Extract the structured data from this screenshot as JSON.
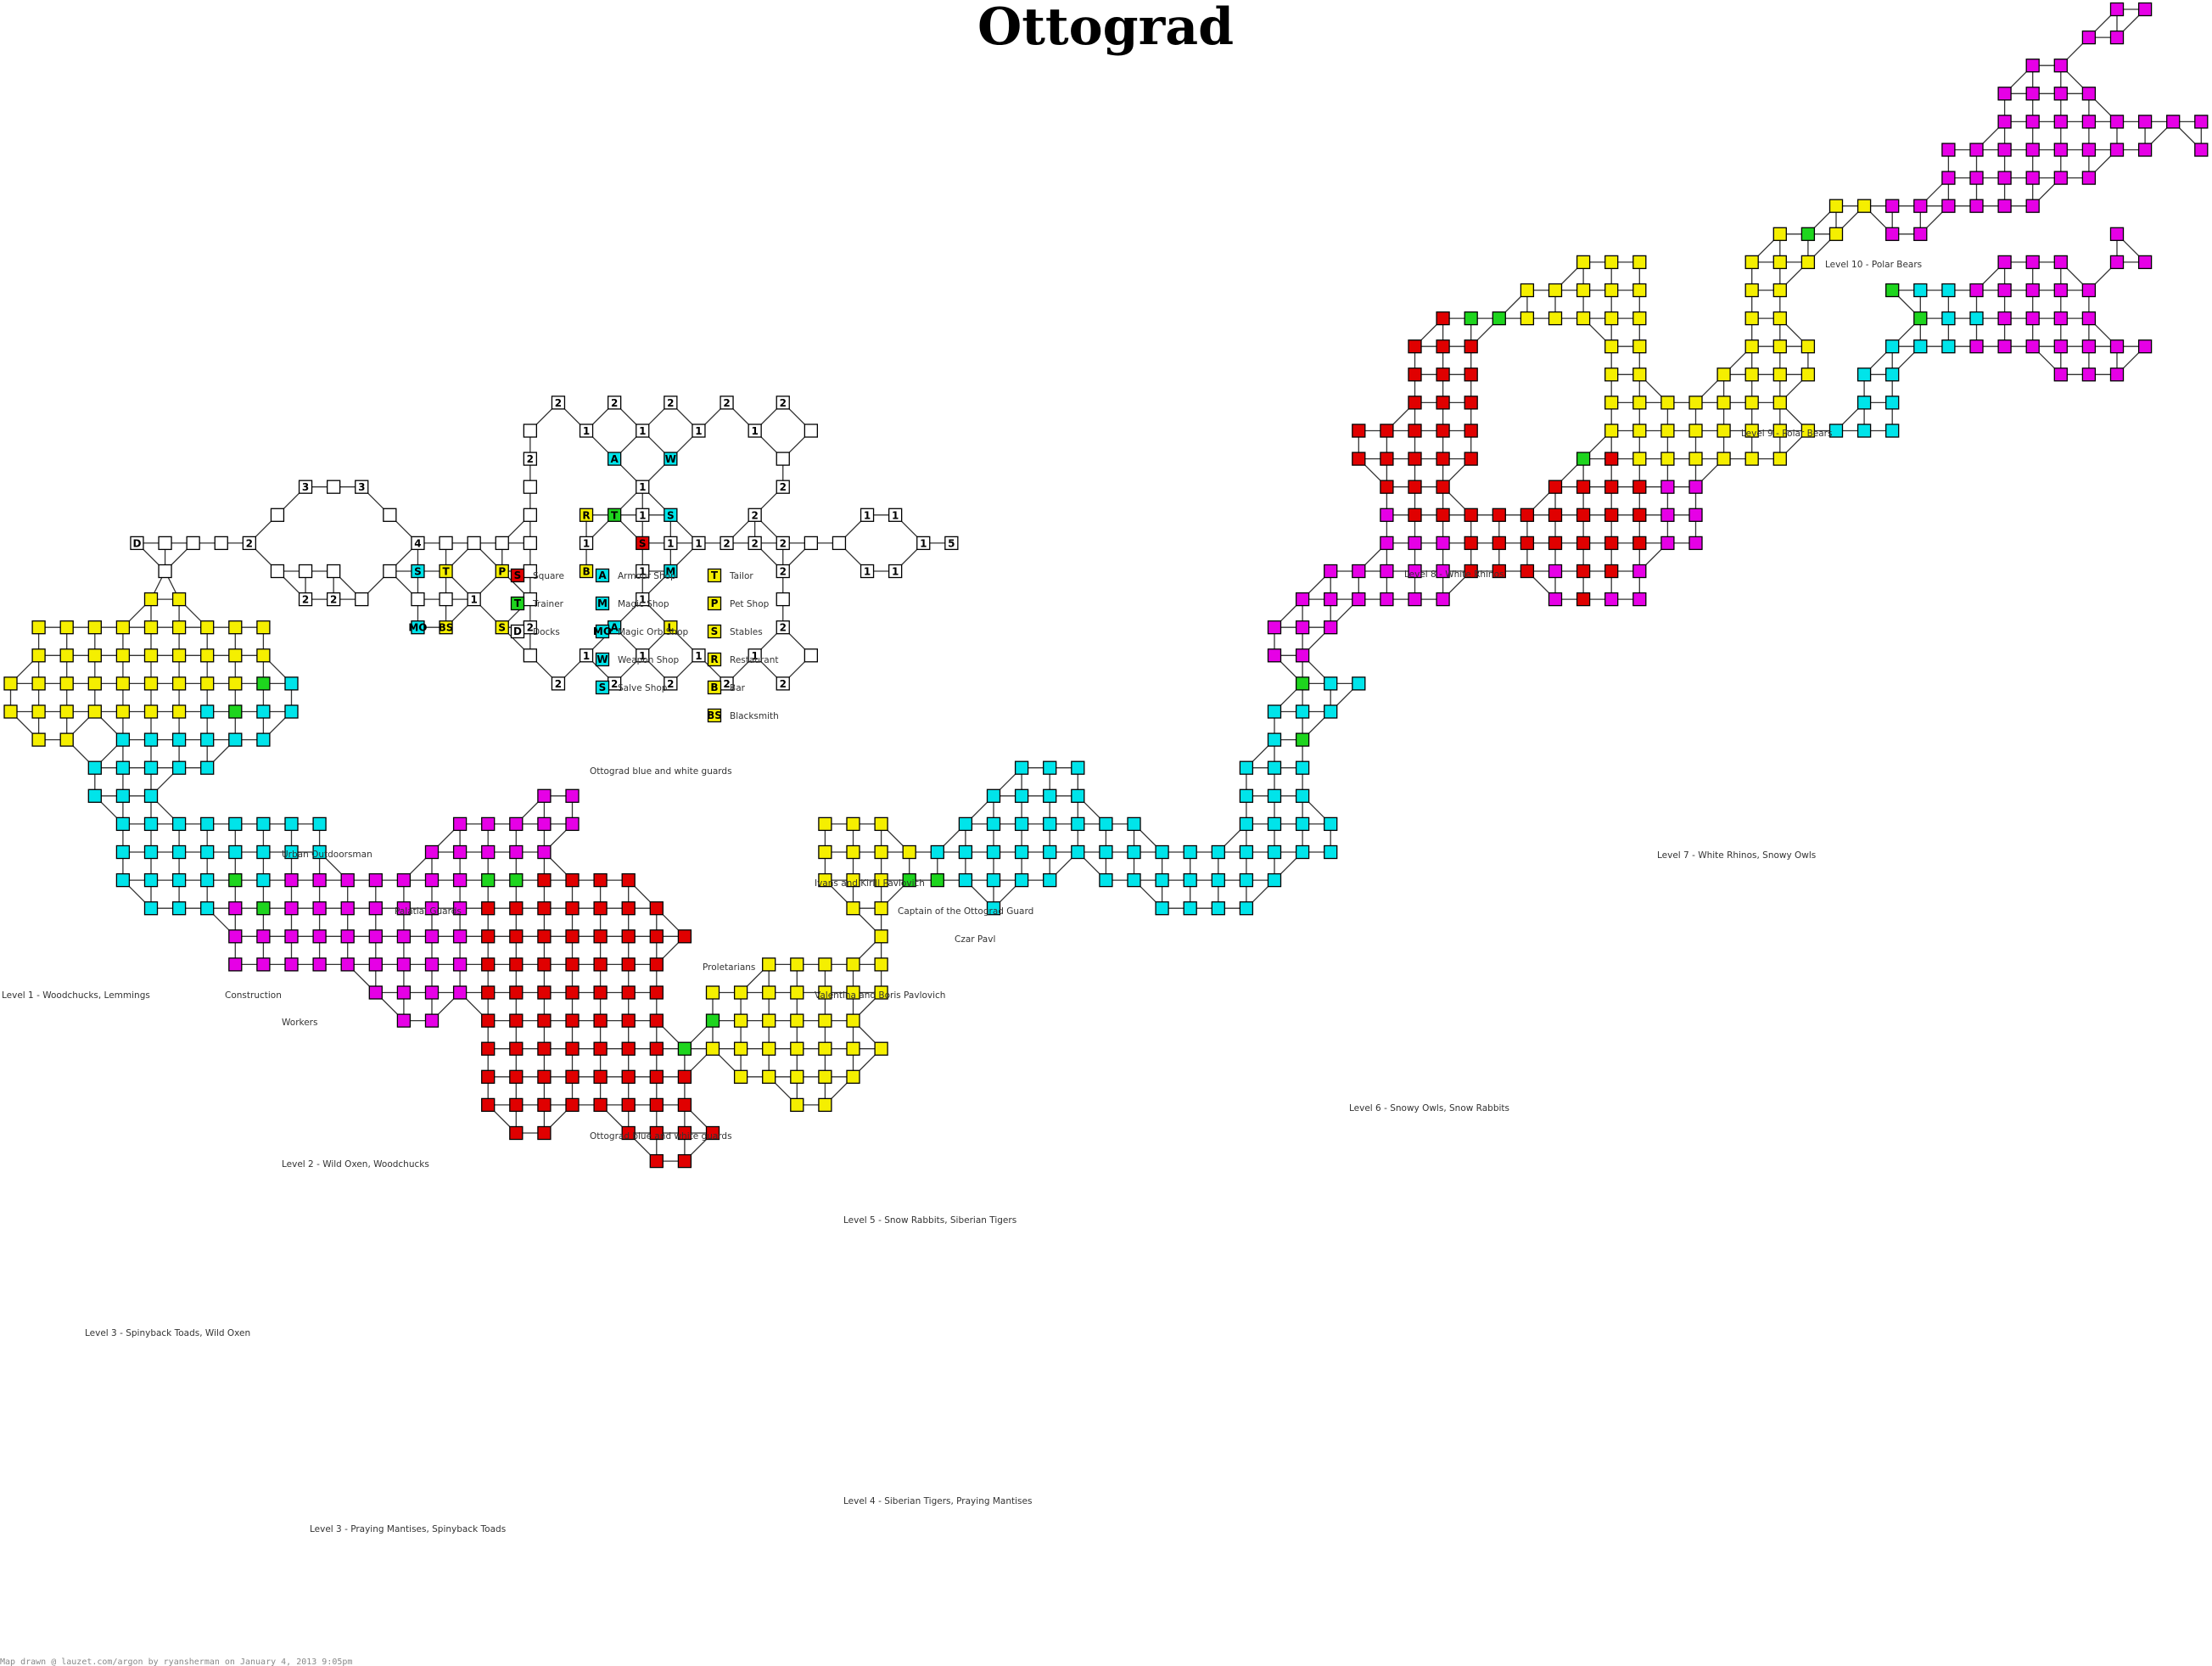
{
  "title": "Ottograd",
  "credit": "Map drawn @ lauzet.com/argon by ryansherman on January 4, 2013 9:05pm",
  "colors": {
    "square": "#e00000",
    "trainer": "#1ed51e",
    "shop": "#00e4ea",
    "yellow": "#f5ef00",
    "magenta": "#e600e6",
    "plain": "#ffffff"
  },
  "legend": [
    {
      "code": "S",
      "color": "square",
      "text": "Square"
    },
    {
      "code": "T",
      "color": "trainer",
      "text": "Trainer"
    },
    {
      "code": "D",
      "color": "plain",
      "text": "Docks"
    },
    {
      "code": "A",
      "color": "shop",
      "text": "Armour Shop"
    },
    {
      "code": "M",
      "color": "shop",
      "text": "Magic Shop"
    },
    {
      "code": "MO",
      "color": "shop",
      "text": "Magic Orb Shop"
    },
    {
      "code": "W",
      "color": "shop",
      "text": "Weapon Shop"
    },
    {
      "code": "S",
      "color": "shop",
      "text": "Salve Shop"
    },
    {
      "code": "T",
      "color": "yellow",
      "text": "Tailor"
    },
    {
      "code": "P",
      "color": "yellow",
      "text": "Pet Shop"
    },
    {
      "code": "S",
      "color": "yellow",
      "text": "Stables"
    },
    {
      "code": "R",
      "color": "yellow",
      "text": "Restaurant"
    },
    {
      "code": "B",
      "color": "yellow",
      "text": "Bar"
    },
    {
      "code": "BS",
      "color": "yellow",
      "text": "Blacksmith"
    }
  ],
  "labels": {
    "guards_top": "Ottograd blue and white guards",
    "guards_bottom": "Ottograd blue and white guards",
    "urban": "Urban Outdoorsman",
    "palatial": "Palatial Guards",
    "construction": "Construction",
    "workers": "Workers",
    "proletarians": "Proletarians",
    "ivans": "Ivans and Kirill Pavlovich",
    "captain": "Captain of the Ottograd Guard",
    "czar": "Czar Pavl",
    "valentina": "Valentina and Boris Pavlovich",
    "level1": "Level 1 - Woodchucks, Lemmings",
    "level2": "Level 2 - Wild Oxen, Woodchucks",
    "level3a": "Level 3 - Spinyback Toads, Wild Oxen",
    "level3b": "Level 3 - Praying Mantises, Spinyback Toads",
    "level4": "Level 4 - Siberian Tigers, Praying Mantises",
    "level5": "Level 5 - Snow Rabbits, Siberian Tigers",
    "level6": "Level 6 - Snowy Owls, Snow Rabbits",
    "level7": "Level 7 - White Rhinos, Snowy Owls",
    "level8": "Level 8 - White Rhinos",
    "level9": "Level 9 - Polar Bears",
    "level10": "Level 10 - Polar Bears"
  }
}
